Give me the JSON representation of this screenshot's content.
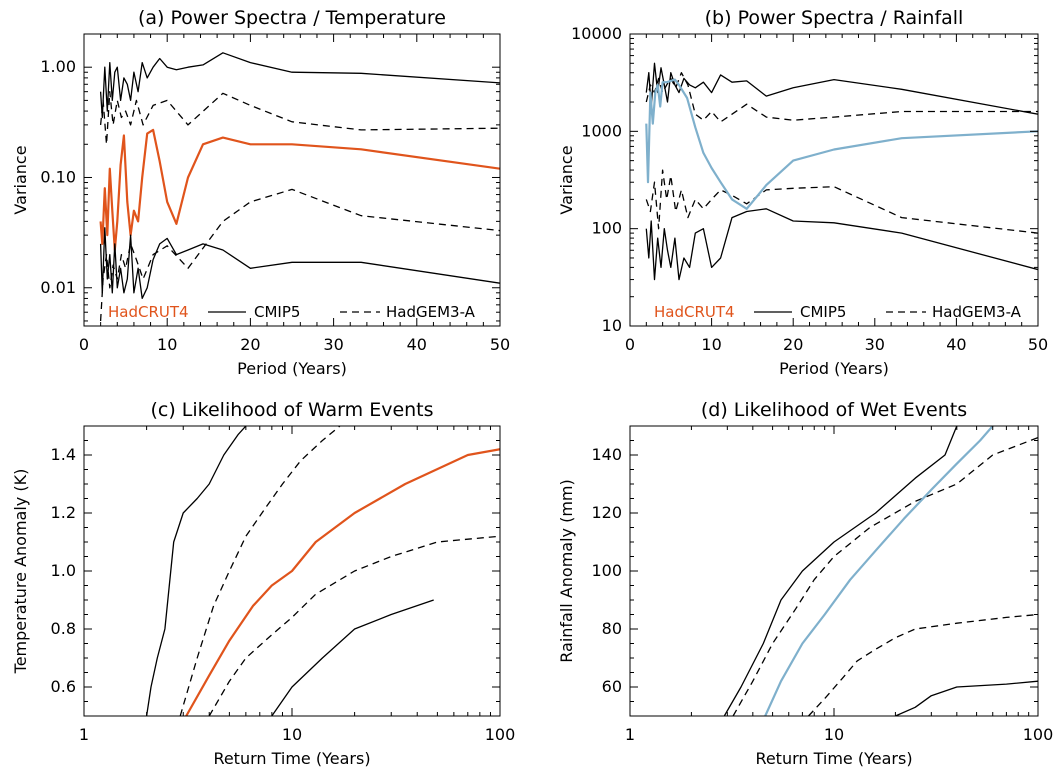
{
  "figure": {
    "background": "#ffffff"
  },
  "chart_data": [
    {
      "id": "a",
      "type": "line",
      "title": "(a) Power Spectra / Temperature",
      "xlabel": "Period (Years)",
      "ylabel": "Variance",
      "xscale": "linear",
      "yscale": "log",
      "xlim": [
        0,
        50
      ],
      "ylim": [
        0.0045,
        2.0
      ],
      "xticks": [
        0,
        10,
        20,
        30,
        40,
        50
      ],
      "xtick_labels": [
        "0",
        "10",
        "20",
        "30",
        "40",
        "50"
      ],
      "yticks": [
        0.01,
        0.1,
        1.0
      ],
      "ytick_labels": [
        "0.01",
        "0.10",
        "1.00"
      ],
      "grid": false,
      "legend": {
        "placement": "bottom",
        "entries": [
          {
            "label": "HadCRUT4",
            "color": "#e0541c",
            "style": "text"
          },
          {
            "label": "CMIP5",
            "color": "#000000",
            "style": "solid"
          },
          {
            "label": "HadGEM3-A",
            "color": "#000000",
            "style": "dashed"
          }
        ]
      },
      "series": [
        {
          "name": "HadCRUT4",
          "color": "#e0541c",
          "style": "solid",
          "width": 2.2,
          "x": [
            2,
            2.2,
            2.5,
            2.8,
            3.1,
            3.4,
            3.7,
            4.0,
            4.4,
            4.8,
            5.2,
            5.6,
            6.0,
            6.5,
            7.0,
            7.6,
            8.3,
            9.1,
            10.0,
            11.1,
            12.5,
            14.3,
            16.7,
            20.0,
            25.0,
            33.3,
            50.0
          ],
          "y": [
            0.04,
            0.025,
            0.08,
            0.03,
            0.12,
            0.05,
            0.022,
            0.04,
            0.13,
            0.24,
            0.06,
            0.03,
            0.05,
            0.04,
            0.1,
            0.25,
            0.27,
            0.14,
            0.06,
            0.038,
            0.1,
            0.2,
            0.23,
            0.2,
            0.2,
            0.18,
            0.12
          ]
        },
        {
          "name": "CMIP5 upper",
          "color": "#000000",
          "style": "solid",
          "width": 1.3,
          "x": [
            2,
            2.2,
            2.5,
            2.8,
            3.1,
            3.4,
            3.7,
            4.0,
            4.4,
            4.8,
            5.2,
            5.6,
            6.0,
            6.5,
            7.0,
            7.6,
            8.3,
            9.1,
            10.0,
            11.1,
            12.5,
            14.3,
            16.7,
            20.0,
            25.0,
            33.3,
            50.0
          ],
          "y": [
            0.6,
            0.35,
            1.0,
            0.4,
            1.1,
            0.5,
            0.9,
            1.0,
            0.5,
            0.8,
            0.7,
            0.5,
            0.9,
            0.6,
            1.1,
            0.8,
            1.0,
            1.2,
            1.0,
            0.95,
            1.0,
            1.05,
            1.35,
            1.1,
            0.9,
            0.88,
            0.72
          ]
        },
        {
          "name": "HadGEM3-A upper",
          "color": "#000000",
          "style": "dashed",
          "width": 1.3,
          "x": [
            2,
            2.3,
            2.7,
            3.1,
            3.5,
            4.0,
            4.5,
            5.0,
            5.6,
            6.3,
            7.1,
            8.3,
            10.0,
            12.5,
            16.7,
            20.0,
            25.0,
            33.3,
            50.0
          ],
          "y": [
            0.3,
            0.5,
            0.2,
            0.6,
            0.3,
            0.5,
            0.35,
            0.4,
            0.3,
            0.5,
            0.3,
            0.45,
            0.5,
            0.3,
            0.58,
            0.45,
            0.32,
            0.27,
            0.28
          ]
        },
        {
          "name": "HadGEM3-A lower",
          "color": "#000000",
          "style": "dashed",
          "width": 1.3,
          "x": [
            2,
            2.3,
            2.7,
            3.1,
            3.5,
            4.0,
            4.5,
            5.0,
            5.6,
            6.3,
            7.1,
            8.3,
            10.0,
            12.5,
            16.7,
            20.0,
            25.0,
            33.3,
            50.0
          ],
          "y": [
            0.005,
            0.012,
            0.02,
            0.01,
            0.016,
            0.012,
            0.02,
            0.015,
            0.025,
            0.018,
            0.012,
            0.02,
            0.024,
            0.015,
            0.04,
            0.06,
            0.078,
            0.045,
            0.033
          ]
        },
        {
          "name": "CMIP5 lower",
          "color": "#000000",
          "style": "solid",
          "width": 1.3,
          "x": [
            2,
            2.2,
            2.5,
            2.8,
            3.1,
            3.4,
            3.7,
            4.0,
            4.4,
            4.8,
            5.2,
            5.6,
            6.0,
            6.5,
            7.0,
            7.6,
            8.3,
            9.1,
            10.0,
            11.1,
            12.5,
            14.3,
            16.7,
            20.0,
            25.0,
            33.3,
            50.0
          ],
          "y": [
            0.025,
            0.009,
            0.035,
            0.012,
            0.02,
            0.009,
            0.025,
            0.01,
            0.015,
            0.009,
            0.012,
            0.03,
            0.009,
            0.015,
            0.008,
            0.01,
            0.018,
            0.025,
            0.028,
            0.02,
            0.022,
            0.025,
            0.022,
            0.015,
            0.017,
            0.017,
            0.011
          ]
        }
      ]
    },
    {
      "id": "b",
      "type": "line",
      "title": "(b) Power Spectra / Rainfall",
      "xlabel": "Period (Years)",
      "ylabel": "Variance",
      "xscale": "linear",
      "yscale": "log",
      "xlim": [
        0,
        50
      ],
      "ylim": [
        10,
        10000
      ],
      "xticks": [
        0,
        10,
        20,
        30,
        40,
        50
      ],
      "xtick_labels": [
        "0",
        "10",
        "20",
        "30",
        "40",
        "50"
      ],
      "yticks": [
        10,
        100,
        1000,
        10000
      ],
      "ytick_labels": [
        "10",
        "100",
        "1000",
        "10000"
      ],
      "grid": false,
      "legend": {
        "placement": "bottom",
        "entries": [
          {
            "label": "HadCRUT4",
            "color": "#e0541c",
            "style": "text"
          },
          {
            "label": "CMIP5",
            "color": "#000000",
            "style": "solid"
          },
          {
            "label": "HadGEM3-A",
            "color": "#000000",
            "style": "dashed"
          }
        ]
      },
      "series": [
        {
          "name": "CMIP5 upper",
          "color": "#000000",
          "style": "solid",
          "width": 1.3,
          "x": [
            2,
            2.3,
            2.6,
            3.0,
            3.4,
            3.8,
            4.2,
            4.6,
            5.0,
            5.5,
            6.0,
            6.6,
            7.3,
            8.0,
            9.0,
            10.0,
            11.1,
            12.5,
            14.3,
            16.7,
            20.0,
            25.0,
            33.3,
            50.0
          ],
          "y": [
            2500,
            4000,
            1800,
            5000,
            2500,
            4500,
            3000,
            2000,
            4000,
            3000,
            2500,
            3500,
            3000,
            2800,
            3200,
            2500,
            3800,
            3200,
            3300,
            2300,
            2800,
            3400,
            2700,
            1500
          ]
        },
        {
          "name": "HadGEM3-A upper",
          "color": "#000000",
          "style": "dashed",
          "width": 1.3,
          "x": [
            2,
            2.5,
            3.0,
            3.5,
            4.0,
            4.5,
            5.0,
            5.6,
            6.3,
            7.1,
            8.0,
            9.0,
            10.0,
            11.1,
            12.5,
            14.3,
            16.7,
            20.0,
            25.0,
            33.3,
            50.0
          ],
          "y": [
            2000,
            3000,
            2500,
            3500,
            2500,
            3000,
            3500,
            2800,
            4000,
            3000,
            1500,
            1300,
            1600,
            1250,
            1500,
            1900,
            1400,
            1300,
            1400,
            1600,
            1600
          ]
        },
        {
          "name": "HadGEM3-A lower",
          "color": "#000000",
          "style": "dashed",
          "width": 1.3,
          "x": [
            2,
            2.5,
            3.0,
            3.5,
            4.0,
            4.5,
            5.0,
            5.6,
            6.3,
            7.1,
            8.0,
            9.0,
            10.0,
            11.1,
            12.5,
            14.3,
            16.7,
            20.0,
            25.0,
            33.3,
            50.0
          ],
          "y": [
            200,
            150,
            300,
            100,
            400,
            200,
            350,
            150,
            250,
            130,
            200,
            160,
            200,
            250,
            220,
            180,
            250,
            260,
            270,
            130,
            90
          ]
        },
        {
          "name": "CMIP5 lower",
          "color": "#000000",
          "style": "solid",
          "width": 1.3,
          "x": [
            2,
            2.3,
            2.6,
            3.0,
            3.4,
            3.8,
            4.2,
            4.6,
            5.0,
            5.5,
            6.0,
            6.6,
            7.3,
            8.0,
            9.0,
            10.0,
            11.1,
            12.5,
            14.3,
            16.7,
            20.0,
            25.0,
            33.3,
            50.0
          ],
          "y": [
            100,
            50,
            120,
            30,
            80,
            40,
            100,
            60,
            40,
            80,
            30,
            50,
            40,
            90,
            100,
            40,
            50,
            130,
            150,
            160,
            120,
            115,
            90,
            38
          ]
        },
        {
          "name": "Observed rainfall",
          "color": "#7fb0cc",
          "style": "solid",
          "width": 2.2,
          "x": [
            2,
            2.2,
            2.5,
            2.8,
            3.1,
            3.4,
            3.7,
            4.0,
            4.5,
            5.0,
            5.5,
            6.0,
            7.0,
            8.0,
            9.0,
            10.0,
            11.1,
            12.5,
            14.3,
            16.7,
            20.0,
            25.0,
            33.3,
            50.0
          ],
          "y": [
            1200,
            300,
            2500,
            1200,
            2500,
            3000,
            1800,
            3200,
            3200,
            3300,
            3400,
            3000,
            2200,
            1100,
            600,
            420,
            300,
            200,
            160,
            280,
            500,
            650,
            850,
            1000
          ]
        }
      ]
    },
    {
      "id": "c",
      "type": "line",
      "title": "(c) Likelihood of Warm Events",
      "xlabel": "Return Time (Years)",
      "ylabel": "Temperature Anomaly (K)",
      "xscale": "log",
      "yscale": "linear",
      "xlim": [
        1,
        100
      ],
      "ylim": [
        0.5,
        1.5
      ],
      "xticks": [
        1,
        10,
        100
      ],
      "xtick_labels": [
        "1",
        "10",
        "100"
      ],
      "yticks": [
        0.6,
        0.8,
        1.0,
        1.2,
        1.4
      ],
      "ytick_labels": [
        "0.6",
        "0.8",
        "1.0",
        "1.2",
        "1.4"
      ],
      "grid": false,
      "series": [
        {
          "name": "CMIP5 upper",
          "color": "#000000",
          "style": "solid",
          "width": 1.3,
          "x": [
            2.0,
            2.1,
            2.25,
            2.45,
            2.7,
            3.0,
            3.5,
            4.0,
            4.7,
            5.5,
            6.0
          ],
          "y": [
            0.5,
            0.6,
            0.7,
            0.8,
            1.1,
            1.2,
            1.25,
            1.3,
            1.4,
            1.47,
            1.5
          ]
        },
        {
          "name": "HadGEM3-A upper",
          "color": "#000000",
          "style": "dashed",
          "width": 1.3,
          "x": [
            2.9,
            3.5,
            4.2,
            5.0,
            6.0,
            7.5,
            9.0,
            11.0,
            14.0,
            17.0
          ],
          "y": [
            0.5,
            0.7,
            0.88,
            1.0,
            1.12,
            1.22,
            1.3,
            1.38,
            1.45,
            1.5
          ]
        },
        {
          "name": "Observed temperature",
          "color": "#e0541c",
          "style": "solid",
          "width": 2.2,
          "x": [
            3.1,
            4.0,
            5.0,
            6.5,
            8.0,
            10.0,
            13.0,
            20.0,
            35.0,
            70.0,
            100.0
          ],
          "y": [
            0.5,
            0.64,
            0.76,
            0.88,
            0.95,
            1.0,
            1.1,
            1.2,
            1.3,
            1.4,
            1.42
          ]
        },
        {
          "name": "HadGEM3-A lower",
          "color": "#000000",
          "style": "dashed",
          "width": 1.3,
          "x": [
            4.0,
            5.0,
            6.0,
            8.0,
            10.0,
            13.0,
            20.0,
            30.0,
            50.0,
            100.0
          ],
          "y": [
            0.5,
            0.62,
            0.7,
            0.78,
            0.84,
            0.92,
            1.0,
            1.05,
            1.1,
            1.12
          ]
        },
        {
          "name": "CMIP5 lower",
          "color": "#000000",
          "style": "solid",
          "width": 1.3,
          "x": [
            8.0,
            10.0,
            14.0,
            20.0,
            30.0,
            48.0
          ],
          "y": [
            0.5,
            0.6,
            0.7,
            0.8,
            0.85,
            0.9
          ]
        }
      ]
    },
    {
      "id": "d",
      "type": "line",
      "title": "(d) Likelihood of Wet Events",
      "xlabel": "Return Time (Years)",
      "ylabel": "Rainfall Anomaly (mm)",
      "xscale": "log",
      "yscale": "linear",
      "xlim": [
        1,
        100
      ],
      "ylim": [
        50,
        150
      ],
      "xticks": [
        1,
        10,
        100
      ],
      "xtick_labels": [
        "1",
        "10",
        "100"
      ],
      "yticks": [
        60,
        80,
        100,
        120,
        140
      ],
      "ytick_labels": [
        "60",
        "80",
        "100",
        "120",
        "140"
      ],
      "grid": false,
      "series": [
        {
          "name": "CMIP5 upper",
          "color": "#000000",
          "style": "solid",
          "width": 1.3,
          "x": [
            2.9,
            3.5,
            4.5,
            5.5,
            7.0,
            10.0,
            16.0,
            25.0,
            35.0,
            40.0
          ],
          "y": [
            50,
            60,
            75,
            90,
            100,
            110,
            120,
            132,
            140,
            150
          ]
        },
        {
          "name": "HadGEM3-A upper",
          "color": "#000000",
          "style": "dashed",
          "width": 1.3,
          "x": [
            3.2,
            4.0,
            5.0,
            6.5,
            8.0,
            10.0,
            15.0,
            25.0,
            40.0,
            60.0,
            100.0
          ],
          "y": [
            50,
            62,
            75,
            87,
            97,
            105,
            115,
            124,
            130,
            140,
            146
          ]
        },
        {
          "name": "Observed rainfall",
          "color": "#7fb0cc",
          "style": "solid",
          "width": 2.2,
          "x": [
            4.6,
            5.5,
            7.0,
            9.0,
            12.0,
            16.0,
            22.0,
            30.0,
            40.0,
            52.0,
            60.0
          ],
          "y": [
            50,
            62,
            75,
            85,
            97,
            107,
            118,
            128,
            137,
            145,
            150
          ]
        },
        {
          "name": "HadGEM3-A lower",
          "color": "#000000",
          "style": "dashed",
          "width": 1.3,
          "x": [
            7.5,
            9.0,
            11.0,
            13.0,
            16.0,
            20.0,
            25.0,
            40.0,
            70.0,
            100.0
          ],
          "y": [
            50,
            56,
            63,
            69,
            73,
            77,
            80,
            82,
            84,
            85
          ]
        },
        {
          "name": "CMIP5 lower",
          "color": "#000000",
          "style": "solid",
          "width": 1.3,
          "x": [
            20.0,
            25.0,
            30.0,
            40.0,
            70.0,
            100.0
          ],
          "y": [
            50,
            53,
            57,
            60,
            61,
            62
          ]
        }
      ]
    }
  ]
}
